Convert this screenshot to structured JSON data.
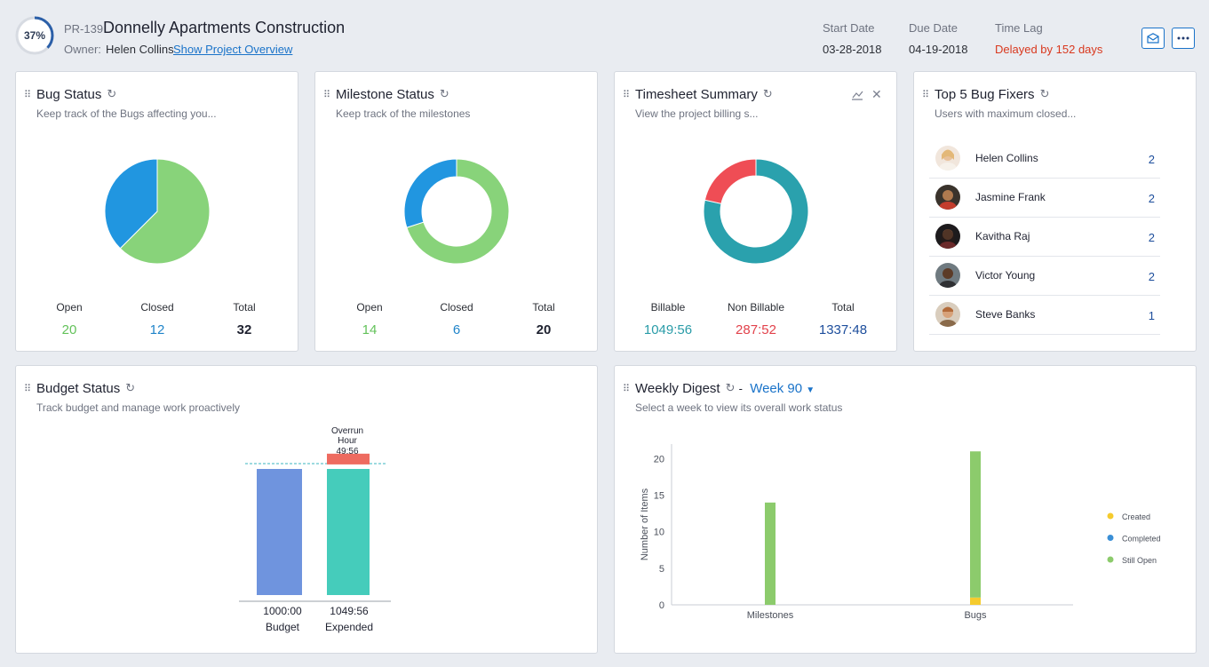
{
  "header": {
    "progress": "37%",
    "progress_fraction": 0.37,
    "project_id": "PR-139",
    "project_name": "Donnelly Apartments Construction",
    "owner_label": "Owner:",
    "owner_name": "Helen Collins",
    "overview_link": "Show Project Overview",
    "start_date_label": "Start Date",
    "start_date": "03-28-2018",
    "due_date_label": "Due Date",
    "due_date": "04-19-2018",
    "time_lag_label": "Time Lag",
    "time_lag": "Delayed by 152 days",
    "buttons": [
      "mail-icon",
      "more-icon"
    ]
  },
  "bug_status": {
    "title": "Bug Status",
    "subtitle": "Keep track of the Bugs affecting you...",
    "open_label": "Open",
    "open_value": "20",
    "closed_label": "Closed",
    "closed_value": "12",
    "total_label": "Total",
    "total_value": "32",
    "colors": {
      "open": "#88d37a",
      "closed": "#2196e0"
    }
  },
  "milestone_status": {
    "title": "Milestone Status",
    "subtitle": "Keep track of the milestones",
    "open_label": "Open",
    "open_value": "14",
    "closed_label": "Closed",
    "closed_value": "6",
    "total_label": "Total",
    "total_value": "20",
    "colors": {
      "open": "#88d37a",
      "closed": "#2196e0"
    }
  },
  "timesheet": {
    "title": "Timesheet Summary",
    "subtitle": "View the project billing s...",
    "billable_label": "Billable",
    "billable_value": "1049:56",
    "nonbillable_label": "Non Billable",
    "nonbillable_value": "287:52",
    "total_label": "Total",
    "total_value": "1337:48",
    "colors": {
      "billable": "#2aa1ad",
      "nonbillable": "#ef4d55"
    }
  },
  "fixers": {
    "title": "Top 5 Bug Fixers",
    "subtitle": "Users with maximum closed...",
    "items": [
      {
        "name": "Helen Collins",
        "count": "2"
      },
      {
        "name": "Jasmine Frank",
        "count": "2"
      },
      {
        "name": "Kavitha Raj",
        "count": "2"
      },
      {
        "name": "Victor Young",
        "count": "2"
      },
      {
        "name": "Steve Banks",
        "count": "1"
      }
    ]
  },
  "budget": {
    "title": "Budget Status",
    "subtitle": "Track budget and manage work proactively",
    "overrun_label_1": "Overrun",
    "overrun_label_2": "Hour",
    "overrun_value": "49:56",
    "budget_value": "1000:00",
    "budget_label": "Budget",
    "expended_value": "1049:56",
    "expended_label": "Expended"
  },
  "weekly": {
    "title": "Weekly Digest",
    "dash": "-",
    "week": "Week 90",
    "subtitle": "Select a week to view its overall work status",
    "legend": [
      {
        "label": "Created",
        "color": "#f5cb2e"
      },
      {
        "label": "Completed",
        "color": "#3a8fd6"
      },
      {
        "label": "Still Open",
        "color": "#8ccb6c"
      }
    ]
  },
  "chart_data": [
    {
      "type": "pie",
      "title": "Bug Status",
      "labels": [
        "Open",
        "Closed"
      ],
      "values": [
        20,
        12
      ]
    },
    {
      "type": "pie",
      "title": "Milestone Status",
      "labels": [
        "Open",
        "Closed"
      ],
      "values": [
        14,
        6
      ]
    },
    {
      "type": "pie",
      "title": "Timesheet Summary",
      "labels": [
        "Billable",
        "Non Billable"
      ],
      "values": [
        1049.93,
        287.87
      ]
    },
    {
      "type": "bar",
      "title": "Budget Status",
      "categories": [
        "Budget",
        "Expended"
      ],
      "values": [
        1000,
        1049.93
      ],
      "overrun": 49.93
    },
    {
      "type": "bar",
      "title": "Weekly Digest",
      "categories": [
        "Milestones",
        "Bugs"
      ],
      "ylabel": "Number of Items",
      "ylim": [
        0,
        22
      ],
      "yticks": [
        "0",
        "5",
        "10",
        "15",
        "20"
      ],
      "series": [
        {
          "name": "Created",
          "values": [
            0,
            1
          ]
        },
        {
          "name": "Completed",
          "values": [
            0,
            0
          ]
        },
        {
          "name": "Still Open",
          "values": [
            14,
            20
          ]
        }
      ]
    }
  ]
}
